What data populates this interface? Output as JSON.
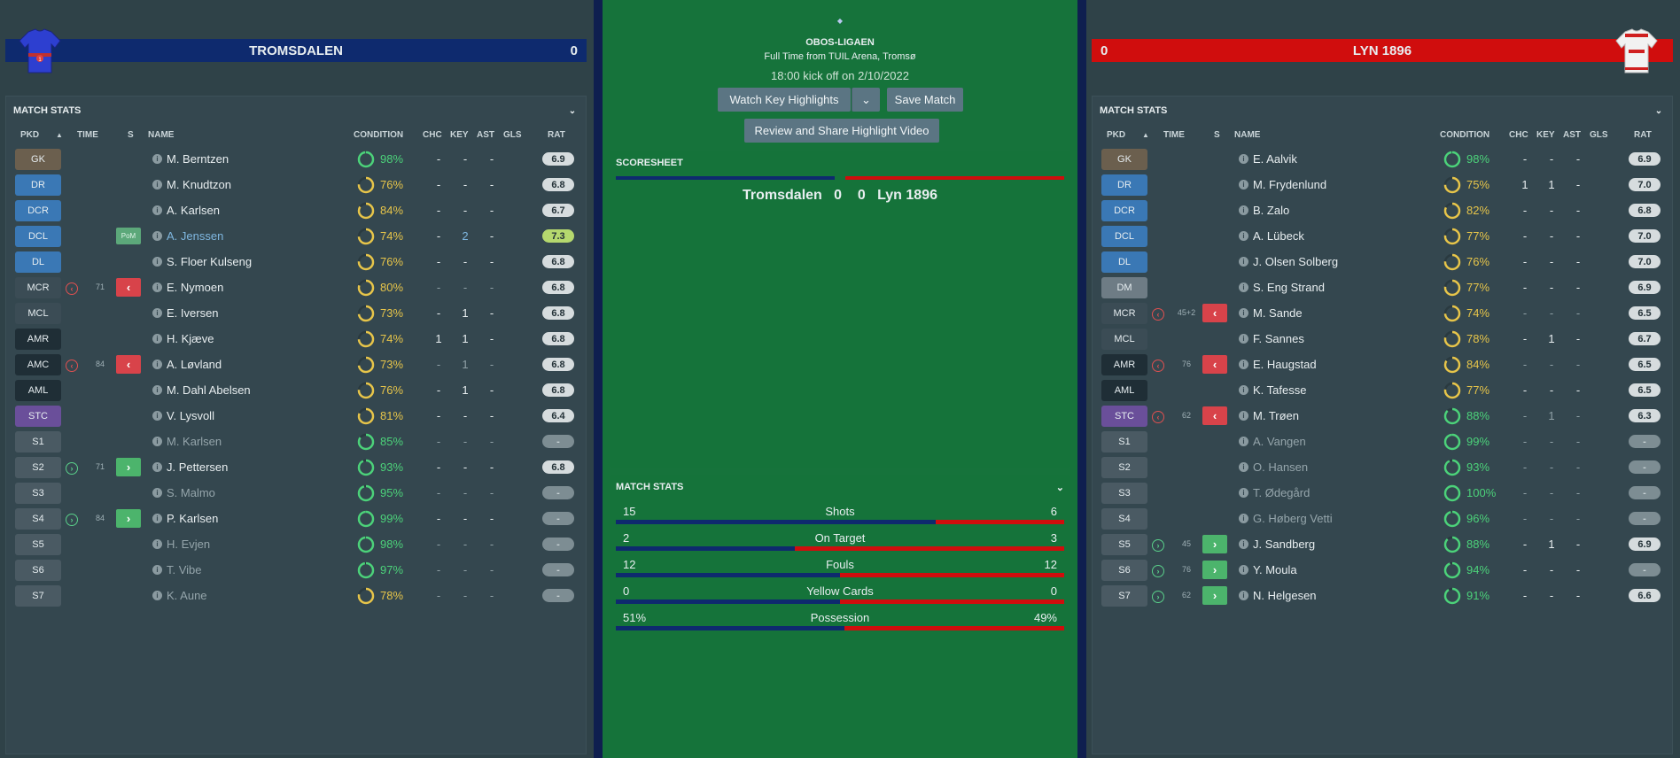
{
  "center": {
    "league": "OBOS-LIGAEN",
    "venue": "Full Time from TUIL Arena, Tromsø",
    "kickoff": "18:00 kick off on 2/10/2022",
    "btn_highlights": "Watch Key Highlights",
    "btn_save": "Save Match",
    "btn_review": "Review and Share Highlight Video",
    "scoresheet_title": "SCORESHEET",
    "home_name": "Tromsdalen",
    "home_score": "0",
    "away_score": "0",
    "away_name": "Lyn 1896",
    "match_stats_title": "MATCH STATS",
    "stats": [
      {
        "label": "Shots",
        "home": "15",
        "away": "6",
        "home_share": 0.714
      },
      {
        "label": "On Target",
        "home": "2",
        "away": "3",
        "home_share": 0.4
      },
      {
        "label": "Fouls",
        "home": "12",
        "away": "12",
        "home_share": 0.5
      },
      {
        "label": "Yellow Cards",
        "home": "0",
        "away": "0",
        "home_share": 0.5
      },
      {
        "label": "Possession",
        "home": "51%",
        "away": "49%",
        "home_share": 0.51
      }
    ]
  },
  "left": {
    "team": "TROMSDALEN",
    "score": "0",
    "panel_title": "MATCH STATS",
    "cols": {
      "pkd": "PKD",
      "time": "TIME",
      "s": "S",
      "name": "NAME",
      "condition": "CONDITION",
      "chc": "CHC",
      "key": "KEY",
      "ast": "AST",
      "gls": "GLS",
      "rat": "RAT"
    },
    "pom_label": "PoM",
    "players": [
      {
        "pos": "GK",
        "name": "M. Berntzen",
        "cond": "98%",
        "condf": 0.98,
        "chc": "-",
        "key": "-",
        "ast": "-",
        "rat": "6.9",
        "cls": "gk"
      },
      {
        "pos": "DR",
        "name": "M. Knudtzon",
        "cond": "76%",
        "condf": 0.76,
        "chc": "-",
        "key": "-",
        "ast": "-",
        "rat": "6.8",
        "cls": "def"
      },
      {
        "pos": "DCR",
        "name": "A. Karlsen",
        "cond": "84%",
        "condf": 0.84,
        "chc": "-",
        "key": "-",
        "ast": "-",
        "rat": "6.7",
        "cls": "def"
      },
      {
        "pos": "DCL",
        "name": "A. Jenssen",
        "cond": "74%",
        "condf": 0.74,
        "chc": "-",
        "key": "2",
        "ast": "-",
        "rat": "7.3",
        "cls": "def",
        "pom": true
      },
      {
        "pos": "DL",
        "name": "S. Floer Kulseng",
        "cond": "76%",
        "condf": 0.76,
        "chc": "-",
        "key": "-",
        "ast": "-",
        "rat": "6.8",
        "cls": "def"
      },
      {
        "pos": "MCR",
        "name": "E. Nymoen",
        "cond": "80%",
        "condf": 0.8,
        "chc": "-",
        "key": "-",
        "ast": "-",
        "rat": "6.8",
        "cls": "mid",
        "sub": "off",
        "time": "71"
      },
      {
        "pos": "MCL",
        "name": "E. Iversen",
        "cond": "73%",
        "condf": 0.73,
        "chc": "-",
        "key": "1",
        "ast": "-",
        "rat": "6.8",
        "cls": "mid"
      },
      {
        "pos": "AMR",
        "name": "H. Kjæve",
        "cond": "74%",
        "condf": 0.74,
        "chc": "1",
        "key": "1",
        "ast": "-",
        "rat": "6.8",
        "cls": "att"
      },
      {
        "pos": "AMC",
        "name": "A. Løvland",
        "cond": "73%",
        "condf": 0.73,
        "chc": "-",
        "key": "1",
        "ast": "-",
        "rat": "6.8",
        "cls": "att",
        "sub": "off",
        "time": "84"
      },
      {
        "pos": "AML",
        "name": "M. Dahl Abelsen",
        "cond": "76%",
        "condf": 0.76,
        "chc": "-",
        "key": "1",
        "ast": "-",
        "rat": "6.8",
        "cls": "att"
      },
      {
        "pos": "STC",
        "name": "V. Lysvoll",
        "cond": "81%",
        "condf": 0.81,
        "chc": "-",
        "key": "-",
        "ast": "-",
        "rat": "6.4",
        "cls": "fwd"
      },
      {
        "pos": "S1",
        "name": "M. Karlsen",
        "cond": "85%",
        "condf": 0.85,
        "chc": "-",
        "key": "-",
        "ast": "-",
        "rat": "-",
        "cls": "sub",
        "unused": true
      },
      {
        "pos": "S2",
        "name": "J. Pettersen",
        "cond": "93%",
        "condf": 0.93,
        "chc": "-",
        "key": "-",
        "ast": "-",
        "rat": "6.8",
        "cls": "sub",
        "sub": "on",
        "time": "71"
      },
      {
        "pos": "S3",
        "name": "S. Malmo",
        "cond": "95%",
        "condf": 0.95,
        "chc": "-",
        "key": "-",
        "ast": "-",
        "rat": "-",
        "cls": "sub",
        "unused": true
      },
      {
        "pos": "S4",
        "name": "P. Karlsen",
        "cond": "99%",
        "condf": 0.99,
        "chc": "-",
        "key": "-",
        "ast": "-",
        "rat": "-",
        "cls": "sub",
        "sub": "on",
        "time": "84"
      },
      {
        "pos": "S5",
        "name": "H. Evjen",
        "cond": "98%",
        "condf": 0.98,
        "chc": "-",
        "key": "-",
        "ast": "-",
        "rat": "-",
        "cls": "sub",
        "unused": true
      },
      {
        "pos": "S6",
        "name": "T. Vibe",
        "cond": "97%",
        "condf": 0.97,
        "chc": "-",
        "key": "-",
        "ast": "-",
        "rat": "-",
        "cls": "sub",
        "unused": true
      },
      {
        "pos": "S7",
        "name": "K. Aune",
        "cond": "78%",
        "condf": 0.78,
        "chc": "-",
        "key": "-",
        "ast": "-",
        "rat": "-",
        "cls": "sub",
        "unused": true
      }
    ]
  },
  "right": {
    "team": "LYN 1896",
    "score": "0",
    "panel_title": "MATCH STATS",
    "cols": {
      "pkd": "PKD",
      "time": "TIME",
      "s": "S",
      "name": "NAME",
      "condition": "CONDITION",
      "chc": "CHC",
      "key": "KEY",
      "ast": "AST",
      "gls": "GLS",
      "rat": "RAT"
    },
    "players": [
      {
        "pos": "GK",
        "name": "E. Aalvik",
        "cond": "98%",
        "condf": 0.98,
        "chc": "-",
        "key": "-",
        "ast": "-",
        "rat": "6.9",
        "cls": "gk"
      },
      {
        "pos": "DR",
        "name": "M. Frydenlund",
        "cond": "75%",
        "condf": 0.75,
        "chc": "1",
        "key": "1",
        "ast": "-",
        "rat": "7.0",
        "cls": "def"
      },
      {
        "pos": "DCR",
        "name": "B. Zalo",
        "cond": "82%",
        "condf": 0.82,
        "chc": "-",
        "key": "-",
        "ast": "-",
        "rat": "6.8",
        "cls": "def"
      },
      {
        "pos": "DCL",
        "name": "A. Lübeck",
        "cond": "77%",
        "condf": 0.77,
        "chc": "-",
        "key": "-",
        "ast": "-",
        "rat": "7.0",
        "cls": "def"
      },
      {
        "pos": "DL",
        "name": "J. Olsen Solberg",
        "cond": "76%",
        "condf": 0.76,
        "chc": "-",
        "key": "-",
        "ast": "-",
        "rat": "7.0",
        "cls": "def"
      },
      {
        "pos": "DM",
        "name": "S. Eng Strand",
        "cond": "77%",
        "condf": 0.77,
        "chc": "-",
        "key": "-",
        "ast": "-",
        "rat": "6.9",
        "cls": "dm"
      },
      {
        "pos": "MCR",
        "name": "M. Sande",
        "cond": "74%",
        "condf": 0.74,
        "chc": "-",
        "key": "-",
        "ast": "-",
        "rat": "6.5",
        "cls": "mid",
        "sub": "off",
        "time": "45+2"
      },
      {
        "pos": "MCL",
        "name": "F. Sannes",
        "cond": "78%",
        "condf": 0.78,
        "chc": "-",
        "key": "1",
        "ast": "-",
        "rat": "6.7",
        "cls": "mid"
      },
      {
        "pos": "AMR",
        "name": "E. Haugstad",
        "cond": "84%",
        "condf": 0.84,
        "chc": "-",
        "key": "-",
        "ast": "-",
        "rat": "6.5",
        "cls": "att",
        "sub": "off",
        "time": "76"
      },
      {
        "pos": "AML",
        "name": "K. Tafesse",
        "cond": "77%",
        "condf": 0.77,
        "chc": "-",
        "key": "-",
        "ast": "-",
        "rat": "6.5",
        "cls": "att"
      },
      {
        "pos": "STC",
        "name": "M. Trøen",
        "cond": "88%",
        "condf": 0.88,
        "chc": "-",
        "key": "1",
        "ast": "-",
        "rat": "6.3",
        "cls": "fwd",
        "sub": "off",
        "time": "62"
      },
      {
        "pos": "S1",
        "name": "A. Vangen",
        "cond": "99%",
        "condf": 0.99,
        "chc": "-",
        "key": "-",
        "ast": "-",
        "rat": "-",
        "cls": "sub",
        "unused": true
      },
      {
        "pos": "S2",
        "name": "O. Hansen",
        "cond": "93%",
        "condf": 0.93,
        "chc": "-",
        "key": "-",
        "ast": "-",
        "rat": "-",
        "cls": "sub",
        "unused": true
      },
      {
        "pos": "S3",
        "name": "T. Ødegård",
        "cond": "100%",
        "condf": 1.0,
        "chc": "-",
        "key": "-",
        "ast": "-",
        "rat": "-",
        "cls": "sub",
        "unused": true
      },
      {
        "pos": "S4",
        "name": "G. Høberg Vetti",
        "cond": "96%",
        "condf": 0.96,
        "chc": "-",
        "key": "-",
        "ast": "-",
        "rat": "-",
        "cls": "sub",
        "unused": true
      },
      {
        "pos": "S5",
        "name": "J. Sandberg",
        "cond": "88%",
        "condf": 0.88,
        "chc": "-",
        "key": "1",
        "ast": "-",
        "rat": "6.9",
        "cls": "sub",
        "sub": "on",
        "time": "45"
      },
      {
        "pos": "S6",
        "name": "Y. Moula",
        "cond": "94%",
        "condf": 0.94,
        "chc": "-",
        "key": "-",
        "ast": "-",
        "rat": "-",
        "cls": "sub",
        "sub": "on",
        "time": "76"
      },
      {
        "pos": "S7",
        "name": "N. Helgesen",
        "cond": "91%",
        "condf": 0.91,
        "chc": "-",
        "key": "-",
        "ast": "-",
        "rat": "6.6",
        "cls": "sub",
        "sub": "on",
        "time": "62"
      }
    ]
  },
  "colors": {
    "home": "#0e2a6e",
    "away": "#d00d0d",
    "pitch": "#1f8244"
  }
}
